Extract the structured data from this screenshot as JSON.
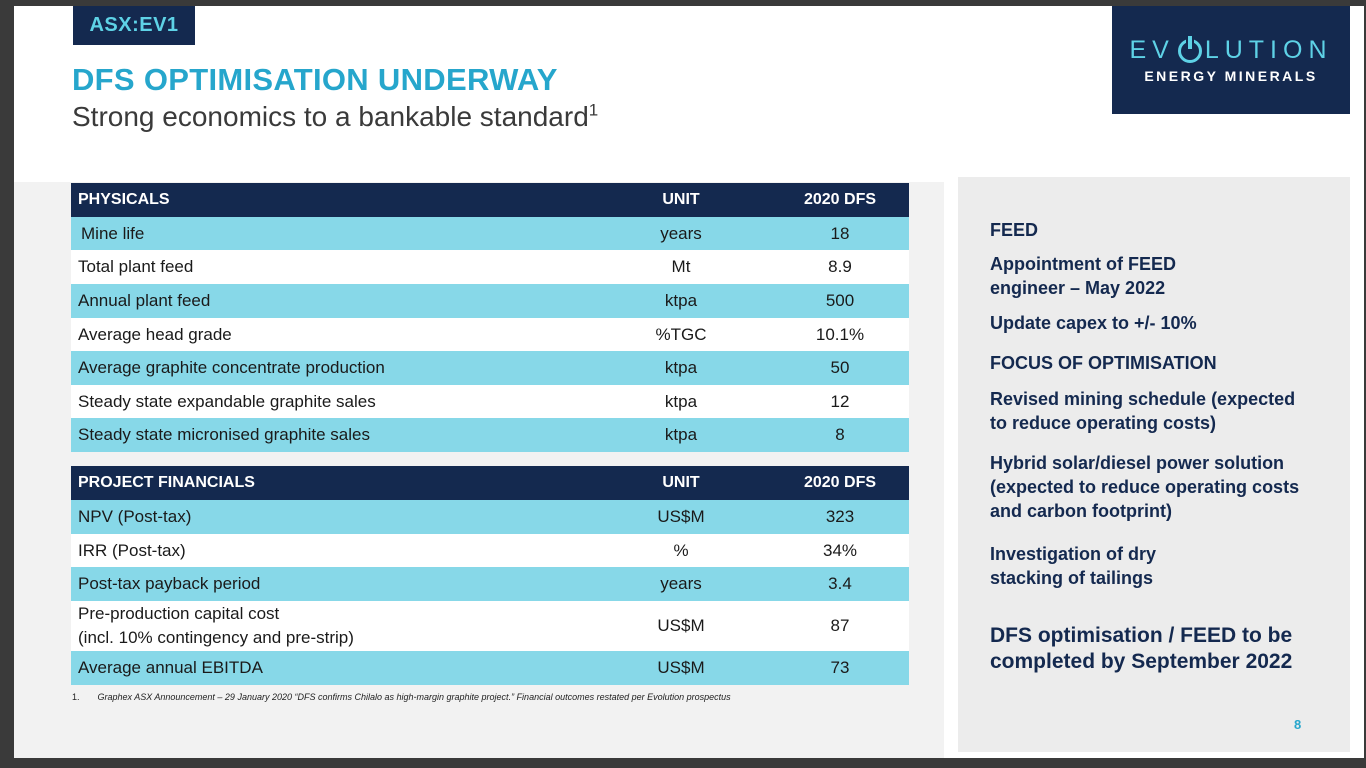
{
  "ticker": "ASX:EV1",
  "title": "DFS OPTIMISATION UNDERWAY",
  "subtitle": "Strong economics to a bankable standard",
  "subtitle_sup": "1",
  "logo": {
    "main_pre": "EV",
    "main_post": "LUTION",
    "sub": "ENERGY MINERALS"
  },
  "physicals": {
    "headers": [
      "PHYSICALS",
      "UNIT",
      "2020 DFS"
    ],
    "rows": [
      [
        "Mine life",
        "years",
        "18"
      ],
      [
        "Total plant feed",
        "Mt",
        "8.9"
      ],
      [
        "Annual plant feed",
        "ktpa",
        "500"
      ],
      [
        "Average head grade",
        "%TGC",
        "10.1%"
      ],
      [
        "Average graphite concentrate production",
        "ktpa",
        "50"
      ],
      [
        "Steady state expandable graphite sales",
        "ktpa",
        "12"
      ],
      [
        "Steady state micronised graphite sales",
        "ktpa",
        "8"
      ]
    ]
  },
  "financials": {
    "headers": [
      "PROJECT FINANCIALS",
      "UNIT",
      "2020 DFS"
    ],
    "rows": [
      [
        "NPV (Post-tax)",
        "US$M",
        "323"
      ],
      [
        "IRR (Post-tax)",
        "%",
        "34%"
      ],
      [
        "Post-tax payback period",
        "years",
        "3.4"
      ],
      [
        "Pre-production capital cost",
        "US$M",
        "87"
      ],
      [
        "Average annual EBITDA",
        "US$M",
        "73"
      ]
    ],
    "capex_line2": "(incl. 10% contingency and pre-strip)"
  },
  "footnote": {
    "num": "1.",
    "text": "Graphex ASX Announcement – 29 January 2020 “DFS confirms Chilalo as high-margin graphite project.” Financial outcomes restated per Evolution prospectus"
  },
  "panel": {
    "feed_heading": "FEED",
    "feed_1a": "Appointment of FEED",
    "feed_1b": "engineer – May 2022",
    "feed_2": "Update capex to +/- 10%",
    "focus_heading": "FOCUS OF OPTIMISATION",
    "focus_1a": "Revised mining schedule (expected",
    "focus_1b": "to reduce operating costs)",
    "focus_2a": "Hybrid solar/diesel power solution",
    "focus_2b": "(expected to reduce operating costs",
    "focus_2c": "and carbon footprint)",
    "focus_3a": "Investigation of dry",
    "focus_3b": "stacking of tailings",
    "closing_a": "DFS optimisation / FEED to be",
    "closing_b": "completed by September 2022"
  },
  "page_number": "8"
}
